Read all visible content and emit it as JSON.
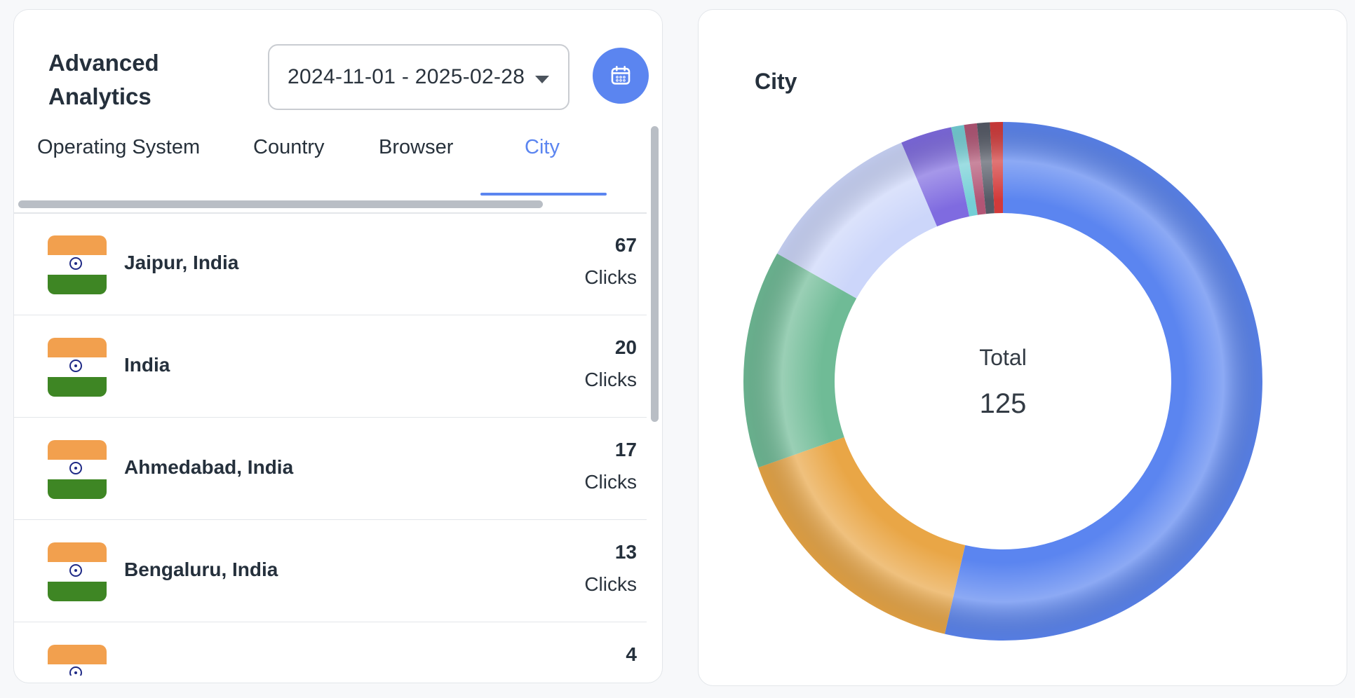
{
  "left_panel": {
    "title": "Advanced Analytics",
    "date_range": "2024-11-01 - 2025-02-28",
    "calendar_icon": "calendar-icon",
    "tabs": [
      {
        "label": "Operating System",
        "active": false
      },
      {
        "label": "Country",
        "active": false
      },
      {
        "label": "Browser",
        "active": false
      },
      {
        "label": "City",
        "active": true
      }
    ],
    "rows": [
      {
        "flag": "india-flag-icon",
        "name": "Jaipur, India",
        "count": "67",
        "unit": "Clicks"
      },
      {
        "flag": "india-flag-icon",
        "name": "India",
        "count": "20",
        "unit": "Clicks"
      },
      {
        "flag": "india-flag-icon",
        "name": "Ahmedabad, India",
        "count": "17",
        "unit": "Clicks"
      },
      {
        "flag": "india-flag-icon",
        "name": "Bengaluru, India",
        "count": "13",
        "unit": "Clicks"
      },
      {
        "flag": "india-flag-icon",
        "name": "",
        "count": "4",
        "unit": ""
      }
    ]
  },
  "right_panel": {
    "title": "City",
    "total_label": "Total",
    "total_value": "125"
  },
  "colors": {
    "accent": "#5b85f0",
    "india_saffron": "#f2a04e",
    "india_green": "#3e8624"
  },
  "chart_data": {
    "type": "pie",
    "title": "City",
    "total": 125,
    "slices": [
      {
        "value": 67,
        "color": "#5b85f0"
      },
      {
        "value": 20,
        "color": "#e9a646"
      },
      {
        "value": 17,
        "color": "#6fbb96"
      },
      {
        "value": 13,
        "color": "#ccd6fa"
      },
      {
        "value": 4,
        "color": "#7f6be0"
      },
      {
        "value": 1,
        "color": "#74cfd6"
      },
      {
        "value": 1,
        "color": "#b25575"
      },
      {
        "value": 1,
        "color": "#555a66"
      },
      {
        "value": 1,
        "color": "#d23a3a"
      }
    ]
  }
}
